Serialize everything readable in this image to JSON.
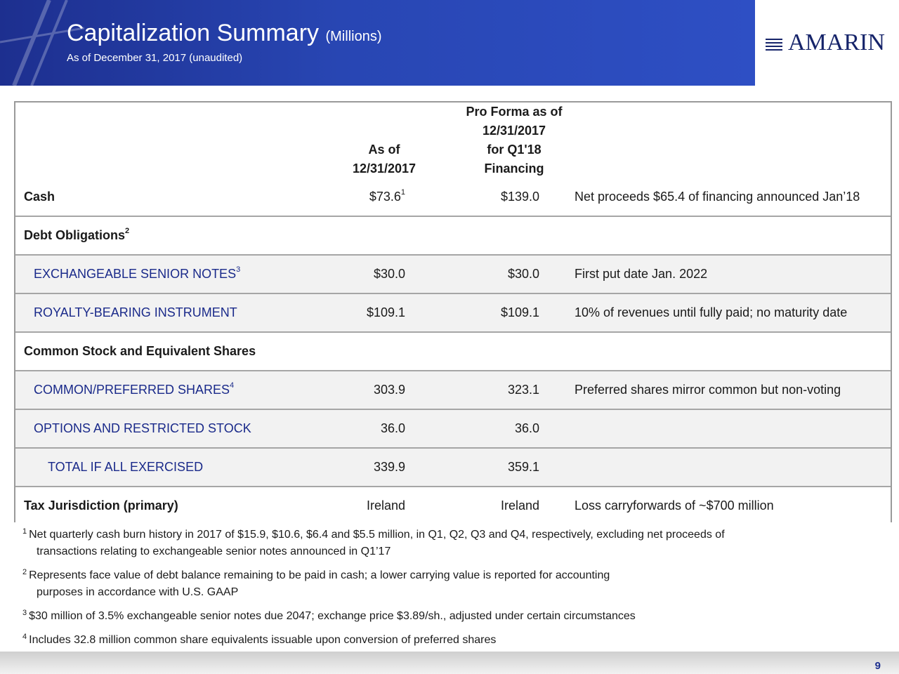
{
  "header": {
    "title": "Capitalization Summary",
    "unit": "(Millions)",
    "subtitle": "As of December 31, 2017 (unaudited)",
    "logo_text": "AMARIN",
    "colors": {
      "banner": "#2846b3",
      "logo": "#16246a"
    }
  },
  "table": {
    "col_headers": {
      "as_of_line1": "As of",
      "as_of_line2": "12/31/2017",
      "pro_forma_line1": "Pro Forma as of",
      "pro_forma_line2": "12/31/2017",
      "pro_forma_line3": "for Q1'18",
      "pro_forma_line4": "Financing"
    },
    "rows": [
      {
        "label": "Cash",
        "sup": "1",
        "as_of": "$73.6",
        "as_of_sup": "1",
        "pro_forma": "$139.0",
        "note": "Net proceeds $65.4 of financing announced Jan’18"
      },
      {
        "label": "Debt Obligations",
        "sup": "2",
        "as_of": "",
        "pro_forma": "",
        "note": ""
      },
      {
        "label": "EXCHANGEABLE SENIOR NOTES",
        "sup": "3",
        "as_of": "$30.0",
        "pro_forma": "$30.0",
        "note": "First put date Jan. 2022"
      },
      {
        "label": "ROYALTY-BEARING INSTRUMENT",
        "as_of": "$109.1",
        "pro_forma": "$109.1",
        "note": "10% of revenues until fully paid; no maturity date"
      },
      {
        "label": "Common Stock and Equivalent Shares"
      },
      {
        "label": "COMMON/PREFERRED SHARES",
        "sup": "4",
        "as_of": "303.9",
        "pro_forma": "323.1",
        "note": "Preferred shares mirror common but non-voting"
      },
      {
        "label": "OPTIONS AND RESTRICTED STOCK",
        "as_of": "36.0",
        "pro_forma": "36.0"
      },
      {
        "label": "TOTAL IF ALL EXERCISED",
        "as_of": "339.9",
        "pro_forma": "359.1"
      },
      {
        "label": "Tax Jurisdiction (primary)",
        "as_of": "Ireland",
        "pro_forma": "Ireland",
        "note": "Loss carryforwards of ~$700 million"
      }
    ]
  },
  "footnotes": [
    {
      "num": "1",
      "line1": "Net quarterly cash burn history in 2017 of $15.9, $10.6, $6.4 and $5.5 million, in Q1, Q2, Q3 and Q4, respectively, excluding net proceeds of",
      "line2": "transactions relating to exchangeable senior notes announced in Q1’17"
    },
    {
      "num": "2",
      "line1": "Represents face value of debt balance remaining to be paid in cash; a lower carrying value is reported for accounting",
      "line2": "purposes in accordance with U.S. GAAP"
    },
    {
      "num": "3",
      "line1": "$30 million of 3.5% exchangeable senior notes due 2047; exchange price $3.89/sh., adjusted under certain circumstances"
    },
    {
      "num": "4",
      "line1": "Includes 32.8 million common share equivalents issuable upon conversion of preferred shares"
    }
  ],
  "page_number": "9"
}
